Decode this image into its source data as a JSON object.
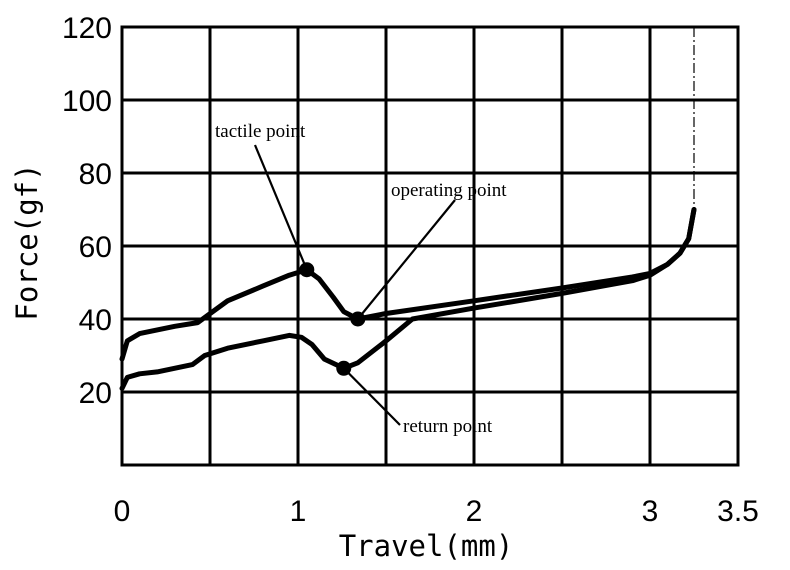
{
  "chart_data": {
    "type": "line",
    "title": "",
    "xlabel": "Travel(mm)",
    "ylabel": "Force(gf)",
    "xlim": [
      0,
      3.5
    ],
    "ylim": [
      0,
      120
    ],
    "x_ticks": [
      0,
      1,
      2,
      3,
      3.5
    ],
    "x_tick_labels": [
      "0",
      "1",
      "2",
      "3",
      "3.5"
    ],
    "y_ticks": [
      20,
      40,
      60,
      80,
      100,
      120
    ],
    "y_tick_labels": [
      "20",
      "40",
      "60",
      "80",
      "100",
      "120"
    ],
    "grid": true,
    "series": [
      {
        "x": [
          0,
          0.03,
          0.1,
          0.2,
          0.3,
          0.43,
          0.6,
          0.8,
          0.95,
          1.05,
          1.12,
          1.2,
          1.26,
          1.34,
          1.5,
          2.0,
          2.5,
          2.9,
          3.0,
          3.1,
          3.17,
          3.22,
          3.25
        ],
        "values": [
          29,
          34,
          36,
          37,
          38,
          39,
          45,
          49,
          52,
          53.5,
          51,
          46,
          42,
          40,
          41.5,
          45,
          48.5,
          51.5,
          52.5,
          55,
          58,
          62,
          70
        ]
      },
      {
        "x": [
          0,
          0.03,
          0.1,
          0.2,
          0.4,
          0.47,
          0.6,
          0.8,
          0.95,
          1.02,
          1.08,
          1.15,
          1.26,
          1.34,
          1.5,
          1.65,
          2.0,
          2.5,
          2.9,
          3.0,
          3.1,
          3.17,
          3.22,
          3.25
        ],
        "values": [
          21,
          24,
          25,
          25.5,
          27.5,
          30,
          32,
          34,
          35.5,
          35,
          33,
          29,
          26.5,
          28,
          34,
          40,
          43,
          47,
          50.5,
          52,
          55,
          58,
          62,
          70
        ]
      }
    ],
    "points": [
      {
        "name": "tactile point",
        "x": 1.05,
        "y": 53.5
      },
      {
        "name": "operating point",
        "x": 1.34,
        "y": 40
      },
      {
        "name": "return point",
        "x": 1.26,
        "y": 26.5
      }
    ],
    "annotations": [
      {
        "text": "tactile point",
        "target": "tactile point"
      },
      {
        "text": "operating point",
        "target": "operating point"
      },
      {
        "text": "return point",
        "target": "return point"
      }
    ],
    "stroke_end_marker_x": 3.25
  }
}
